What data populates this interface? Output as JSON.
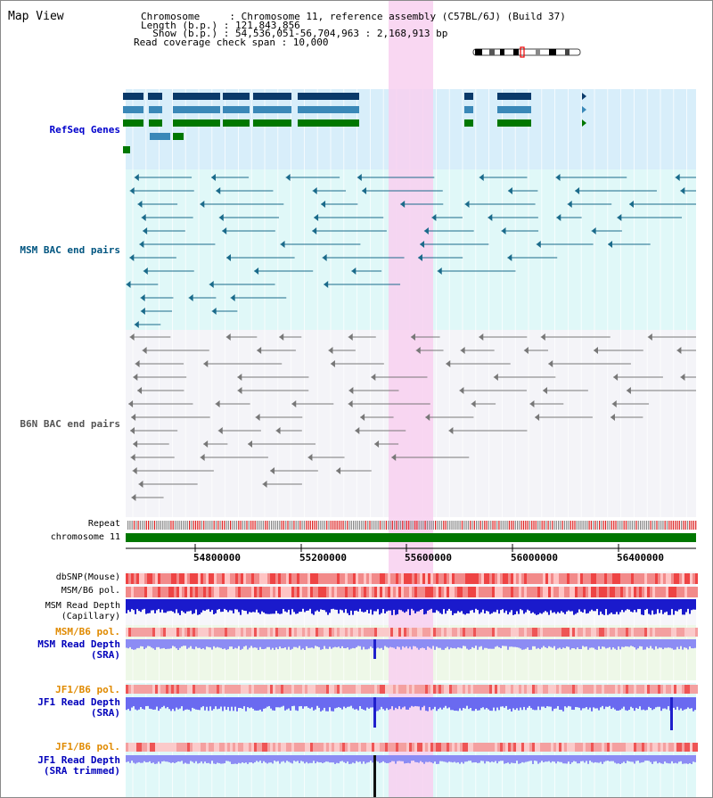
{
  "page_title": "Map View",
  "header": {
    "chromosome_line": "Chromosome     : Chromosome 11, reference assembly (C57BL/6J) (Build 37)",
    "length_line": "Length (b.p.) : 121,843,856",
    "show_line": "  Show (b.p.) : 54,536,051-56,704,963 : 2,168,913 bp",
    "coverage_line": "Read coverage check span : 10,000"
  },
  "tracks": {
    "refseq": "RefSeq Genes",
    "msm_bac": "MSM BAC end pairs",
    "b6n_bac": "B6N BAC end pairs",
    "repeat": "Repeat",
    "chromosome": "chromosome 11",
    "dbsnp": "dbSNP(Mouse)",
    "msm_b6_pol_1": "MSM/B6 pol.",
    "msm_read_depth_cap_1": "MSM Read Depth",
    "msm_read_depth_cap_2": "(Capillary)",
    "msm_b6_pol_2": "MSM/B6 pol.",
    "msm_read_depth_sra_1": "MSM Read Depth",
    "msm_read_depth_sra_2": "(SRA)",
    "jf1_b6_pol_1": "JF1/B6 pol.",
    "jf1_read_depth_sra_1": "JF1 Read Depth",
    "jf1_read_depth_sra_2": "(SRA)",
    "jf1_b6_pol_2": "JF1/B6 pol.",
    "jf1_read_depth_trim_1": "JF1 Read Depth",
    "jf1_read_depth_trim_2": "(SRA trimmed)"
  },
  "axis_ticks": [
    "54800000",
    "55200000",
    "55600000",
    "56000000",
    "56400000"
  ],
  "colors": {
    "refseq_label": "#0000cc",
    "msm_bac_label": "#005580",
    "b6n_bac_label": "#555555",
    "pol_label_orange": "#e08a00",
    "read_depth_blue": "#0000bb",
    "highlight_pink": "#f8d0f0",
    "chromosome_green": "#007700"
  }
}
